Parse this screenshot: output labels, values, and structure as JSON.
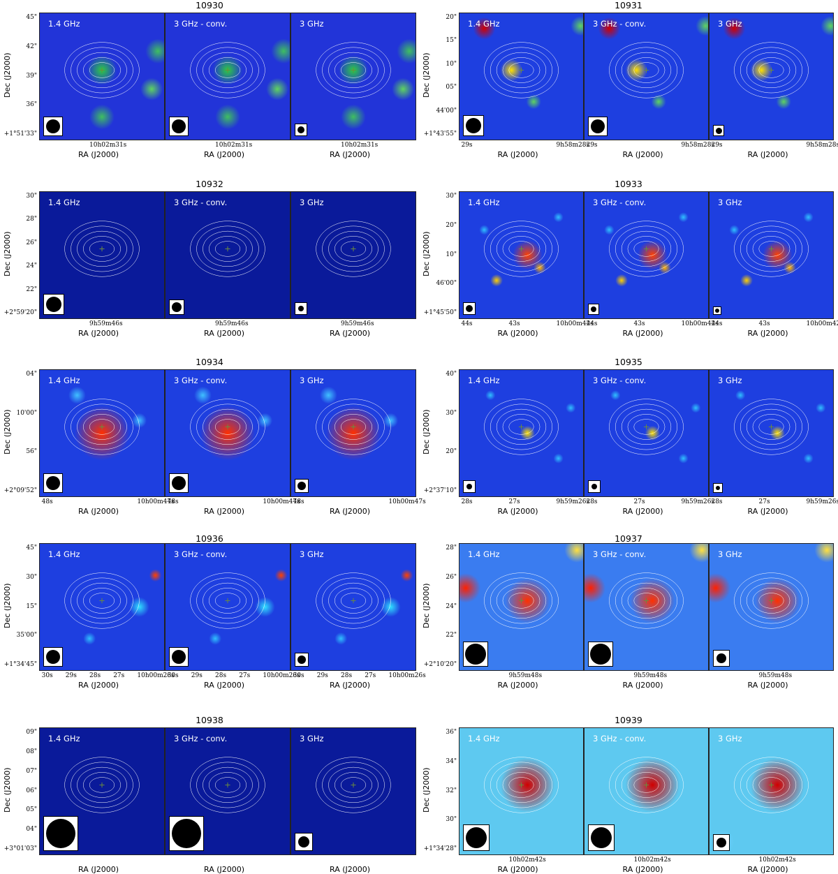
{
  "figures": [
    {
      "id": "10930",
      "colormap": "dark-blue",
      "panel_labels": [
        "1.4 GHz",
        "3 GHz - conv.",
        "3 GHz"
      ],
      "ylabel": "Dec (J2000)",
      "xlabel": "RA (J2000)",
      "yticks": [
        "45\"",
        "42\"",
        "39\"",
        "36\"",
        "+1°51'33\""
      ],
      "xticks": [
        [
          "10h02m31s"
        ],
        [
          "10h02m31s"
        ],
        [
          "10h02m31s"
        ]
      ]
    },
    {
      "id": "10931",
      "colormap": "blue",
      "panel_labels": [
        "1.4 GHz",
        "3 GHz - conv.",
        "3 GHz"
      ],
      "ylabel": "Dec (J2000)",
      "xlabel": "RA (J2000)",
      "yticks": [
        "20\"",
        "15\"",
        "10\"",
        "05\"",
        "44'00\"",
        "+1°43'55\""
      ],
      "xticks": [
        [
          "29s",
          "9h58m28s"
        ],
        [
          "29s",
          "9h58m28s"
        ],
        [
          "29s",
          "9h58m28s"
        ]
      ]
    },
    {
      "id": "10932",
      "colormap": "navy",
      "panel_labels": [
        "1.4 GHz",
        "3 GHz - conv.",
        "3 GHz"
      ],
      "ylabel": "Dec (J2000)",
      "xlabel": "RA (J2000)",
      "yticks": [
        "30\"",
        "28\"",
        "26\"",
        "24\"",
        "22\"",
        "+2°59'20\""
      ],
      "xticks": [
        [
          "9h59m46s"
        ],
        [
          "9h59m46s"
        ],
        [
          "9h59m46s"
        ]
      ]
    },
    {
      "id": "10933",
      "colormap": "blue",
      "panel_labels": [
        "1.4 GHz",
        "3 GHz - conv.",
        "3 GHz"
      ],
      "ylabel": "Dec (J2000)",
      "xlabel": "RA (J2000)",
      "yticks": [
        "30\"",
        "20\"",
        "10\"",
        "46'00\"",
        "+1°45'50\""
      ],
      "xticks": [
        [
          "44s",
          "43s",
          "10h00m42s"
        ],
        [
          "44s",
          "43s",
          "10h00m42s"
        ],
        [
          "44s",
          "43s",
          "10h00m42s"
        ]
      ]
    },
    {
      "id": "10934",
      "colormap": "blue",
      "panel_labels": [
        "1.4 GHz",
        "3 GHz - conv.",
        "3 GHz"
      ],
      "ylabel": "Dec (J2000)",
      "xlabel": "RA (J2000)",
      "yticks": [
        "04\"",
        "10'00\"",
        "56\"",
        "+2°09'52\""
      ],
      "xticks": [
        [
          "48s",
          "10h00m47s"
        ],
        [
          "48s",
          "10h00m47s"
        ],
        [
          "48s",
          "10h00m47s"
        ]
      ]
    },
    {
      "id": "10935",
      "colormap": "blue",
      "panel_labels": [
        "1.4 GHz",
        "3 GHz - conv.",
        "3 GHz"
      ],
      "ylabel": "Dec (J2000)",
      "xlabel": "RA (J2000)",
      "yticks": [
        "40\"",
        "30\"",
        "20\"",
        "+2°37'10\""
      ],
      "xticks": [
        [
          "28s",
          "27s",
          "9h59m26s"
        ],
        [
          "28s",
          "27s",
          "9h59m26s"
        ],
        [
          "28s",
          "27s",
          "9h59m26s"
        ]
      ]
    },
    {
      "id": "10936",
      "colormap": "blue",
      "panel_labels": [
        "1.4 GHz",
        "3 GHz - conv.",
        "3 GHz"
      ],
      "ylabel": "Dec (J2000)",
      "xlabel": "RA (J2000)",
      "yticks": [
        "45\"",
        "30\"",
        "15\"",
        "35'00\"",
        "+1°34'45\""
      ],
      "xticks": [
        [
          "30s",
          "29s",
          "28s",
          "27s",
          "10h00m26s"
        ],
        [
          "30s",
          "29s",
          "28s",
          "27s",
          "10h00m26s"
        ],
        [
          "30s",
          "29s",
          "28s",
          "27s",
          "10h00m26s"
        ]
      ]
    },
    {
      "id": "10937",
      "colormap": "light-blue",
      "panel_labels": [
        "1.4 GHz",
        "3 GHz - conv.",
        "3 GHz"
      ],
      "ylabel": "Dec (J2000)",
      "xlabel": "RA (J2000)",
      "yticks": [
        "28\"",
        "26\"",
        "24\"",
        "22\"",
        "+2°10'20\""
      ],
      "xticks": [
        [
          "9h59m48s"
        ],
        [
          "9h59m48s"
        ],
        [
          "9h59m48s"
        ]
      ]
    },
    {
      "id": "10938",
      "colormap": "navy",
      "panel_labels": [
        "1.4 GHz",
        "3 GHz - conv.",
        "3 GHz"
      ],
      "ylabel": "Dec (J2000)",
      "xlabel": "RA (J2000)",
      "yticks": [
        "09\"",
        "08\"",
        "07\"",
        "06\"",
        "05\"",
        "04\"",
        "+3°01'03\""
      ],
      "xticks": [
        [],
        [],
        []
      ]
    },
    {
      "id": "10939",
      "colormap": "cyan",
      "panel_labels": [
        "1.4 GHz",
        "3 GHz - conv.",
        "3 GHz"
      ],
      "ylabel": "Dec (J2000)",
      "xlabel": "RA (J2000)",
      "yticks": [
        "36\"",
        "34\"",
        "32\"",
        "30\"",
        "+1°34'28\""
      ],
      "xticks": [
        [
          "10h02m42s"
        ],
        [
          "10h02m42s"
        ],
        [
          "10h02m42s"
        ]
      ]
    }
  ]
}
